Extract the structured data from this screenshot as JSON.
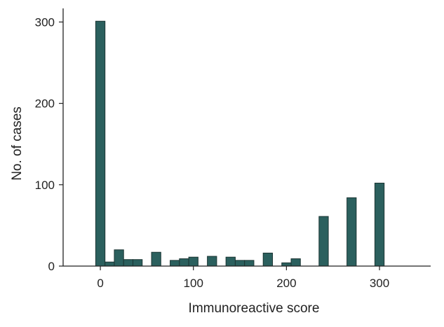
{
  "chart_data": {
    "type": "bar",
    "title": "",
    "xlabel": "Immunoreactive score",
    "ylabel": "No. of cases",
    "xlim": [
      -40,
      355
    ],
    "ylim": [
      0,
      315
    ],
    "x_ticks": [
      0,
      100,
      200,
      300
    ],
    "y_ticks": [
      0,
      100,
      200,
      300
    ],
    "grid": false,
    "bar_color": "#2b605e",
    "bar_width": 10,
    "series": [
      {
        "x": [
          0,
          10,
          20,
          30,
          40,
          60,
          80,
          90,
          100,
          120,
          140,
          150,
          160,
          180,
          200,
          210,
          240,
          270,
          300
        ],
        "values": [
          301,
          5,
          20,
          8,
          8,
          17,
          7,
          9,
          11,
          12,
          11,
          7,
          7,
          16,
          4,
          9,
          61,
          84,
          102
        ]
      }
    ]
  }
}
